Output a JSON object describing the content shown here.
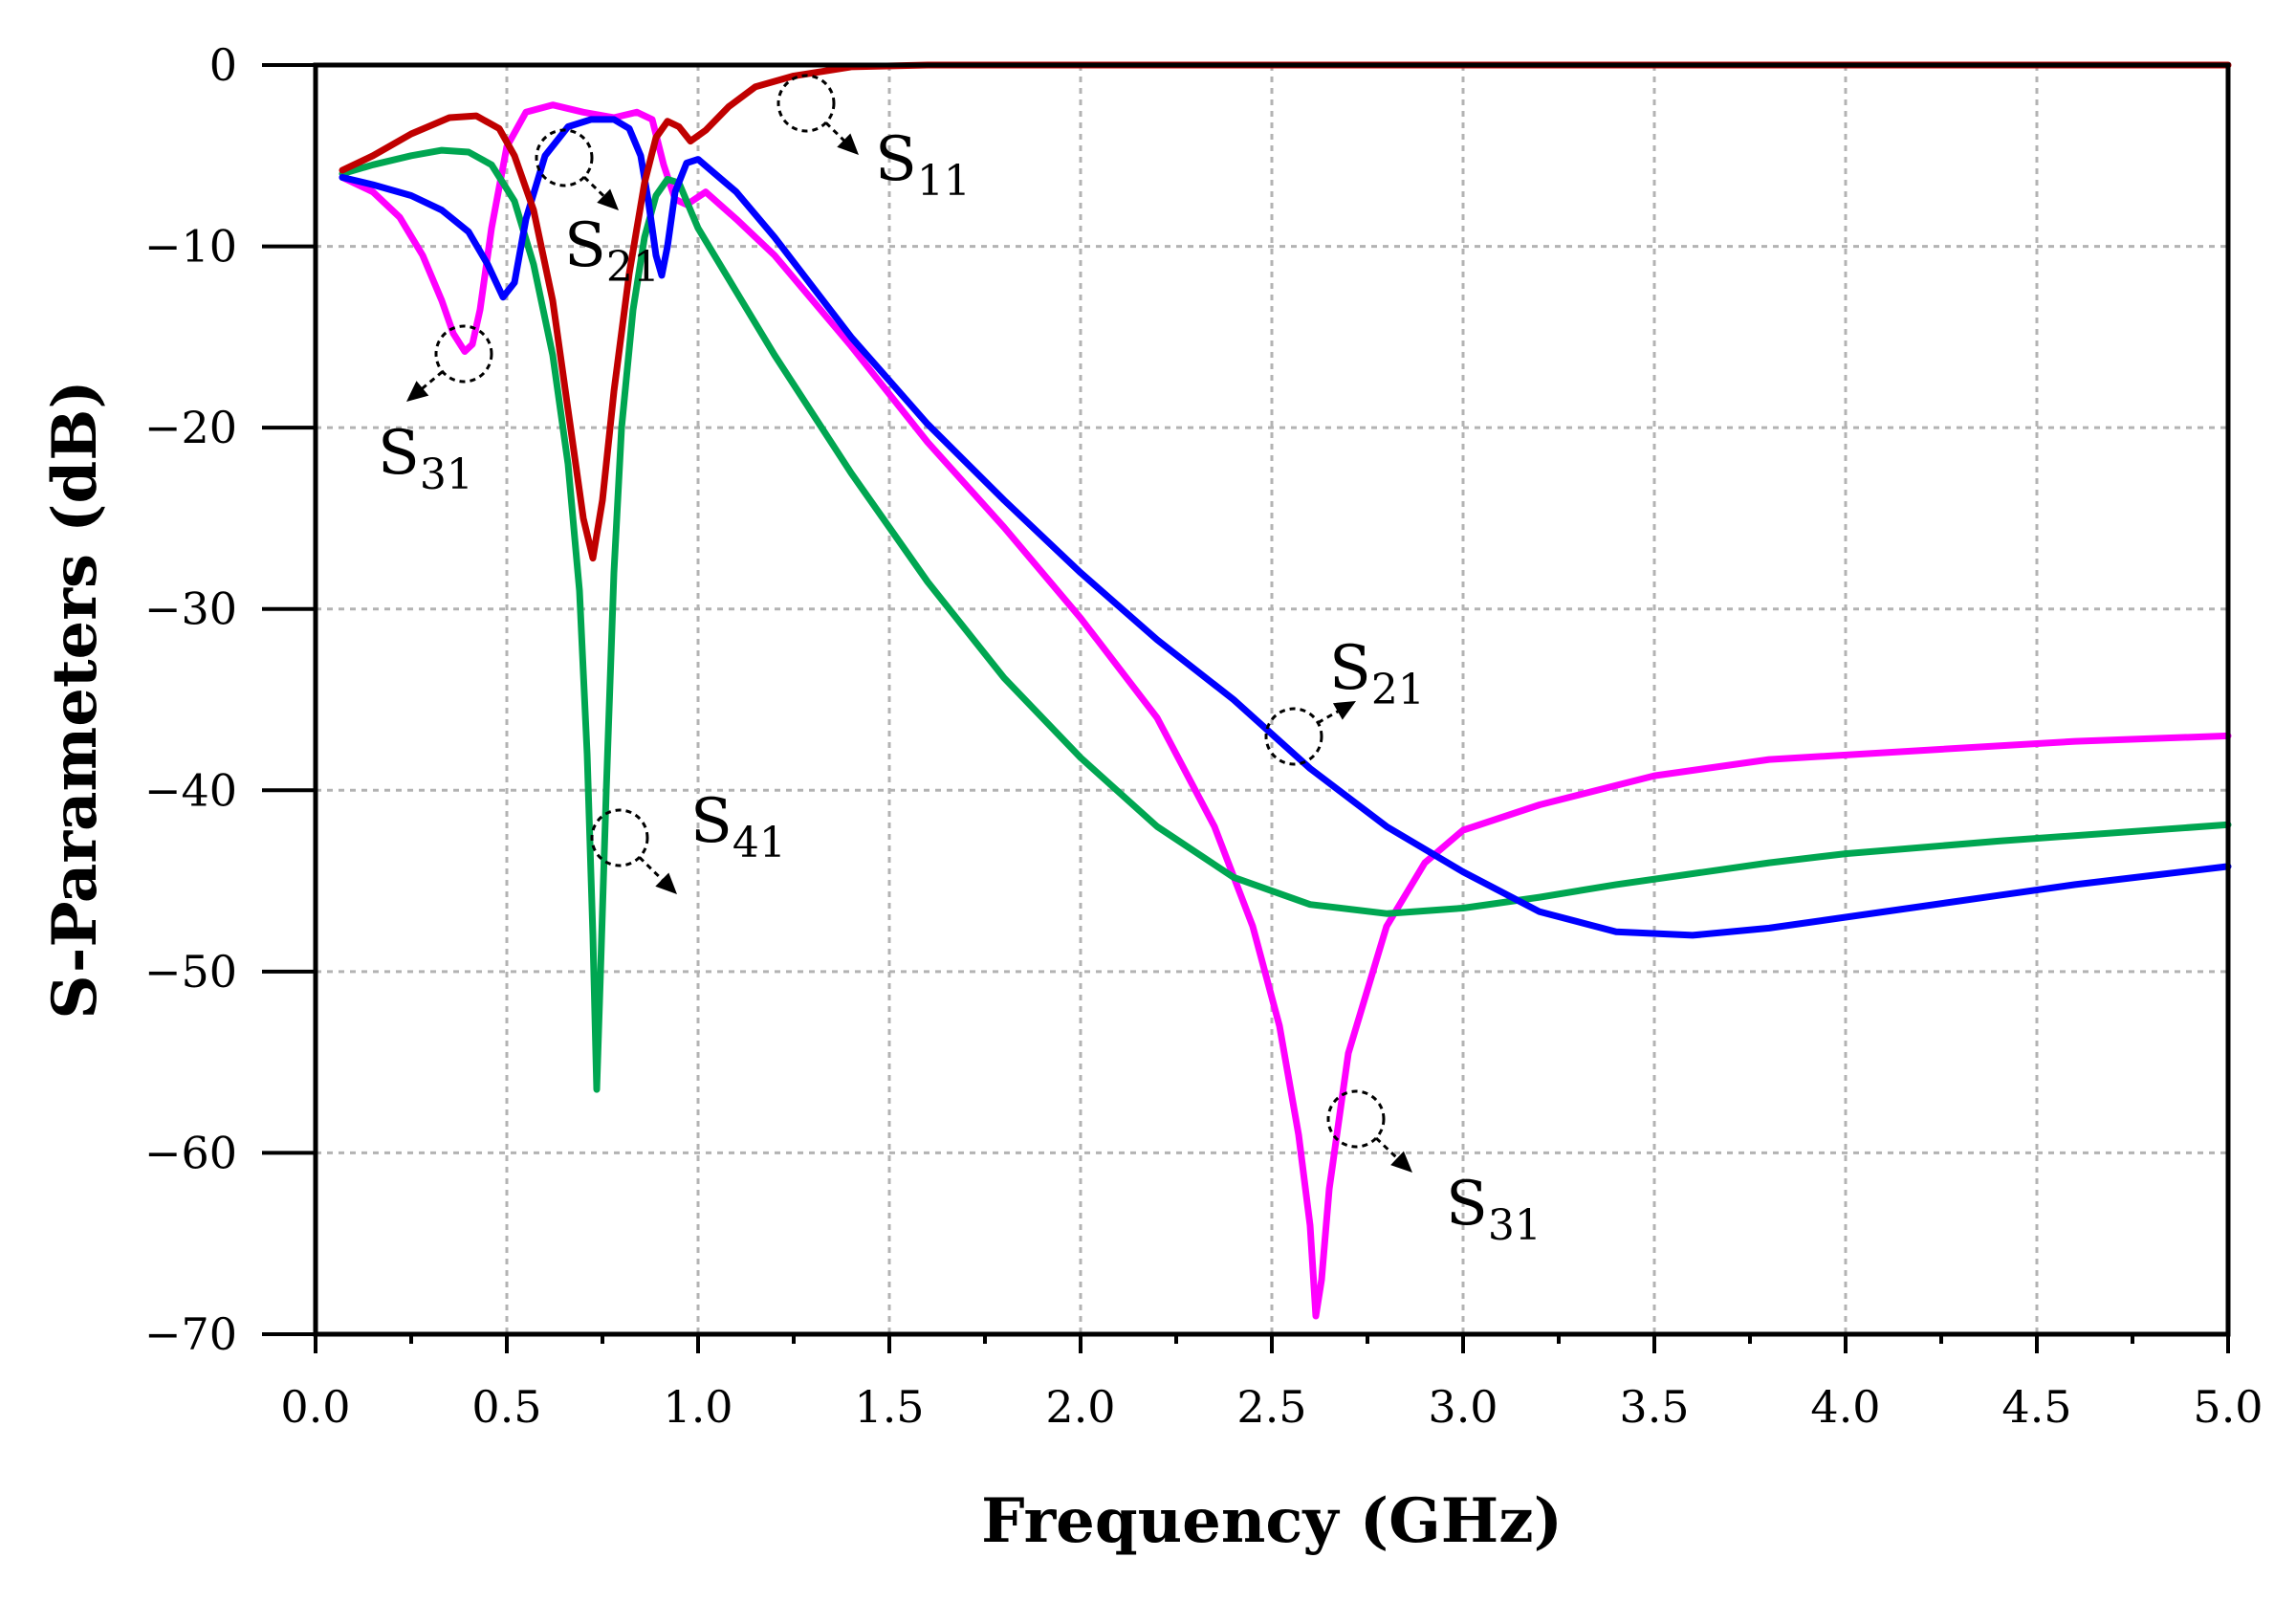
{
  "chart_data": {
    "type": "line",
    "title": "",
    "xlabel": "Frequency  (GHz)",
    "ylabel": "S-Parameters (dB)",
    "xlim": [
      0.0,
      5.0
    ],
    "ylim": [
      -70,
      0
    ],
    "grid": true,
    "x_ticks": [
      "0.0",
      "0.5",
      "1.0",
      "1.5",
      "2.0",
      "2.5",
      "3.0",
      "3.5",
      "4.0",
      "4.5",
      "5.0"
    ],
    "y_ticks": [
      "0",
      "−10",
      "−20",
      "−30",
      "−40",
      "−50",
      "−60",
      "−70"
    ],
    "series": [
      {
        "name": "S11",
        "color": "#c00000",
        "points": [
          [
            0.07,
            -5.8
          ],
          [
            0.15,
            -5.0
          ],
          [
            0.25,
            -3.8
          ],
          [
            0.35,
            -2.9
          ],
          [
            0.42,
            -2.8
          ],
          [
            0.48,
            -3.5
          ],
          [
            0.52,
            -5.0
          ],
          [
            0.57,
            -8.0
          ],
          [
            0.62,
            -13.0
          ],
          [
            0.66,
            -19.0
          ],
          [
            0.7,
            -25.0
          ],
          [
            0.725,
            -27.2
          ],
          [
            0.75,
            -24.0
          ],
          [
            0.78,
            -18.0
          ],
          [
            0.82,
            -11.5
          ],
          [
            0.86,
            -6.5
          ],
          [
            0.89,
            -4.0
          ],
          [
            0.92,
            -3.1
          ],
          [
            0.95,
            -3.4
          ],
          [
            0.98,
            -4.2
          ],
          [
            1.02,
            -3.6
          ],
          [
            1.08,
            -2.3
          ],
          [
            1.15,
            -1.2
          ],
          [
            1.25,
            -0.6
          ],
          [
            1.4,
            -0.1
          ],
          [
            1.6,
            0.0
          ],
          [
            2.0,
            0.0
          ],
          [
            3.0,
            0.0
          ],
          [
            4.0,
            0.0
          ],
          [
            5.0,
            0.0
          ]
        ]
      },
      {
        "name": "S21",
        "color": "#0000ff",
        "points": [
          [
            0.07,
            -6.2
          ],
          [
            0.15,
            -6.6
          ],
          [
            0.25,
            -7.2
          ],
          [
            0.33,
            -8.0
          ],
          [
            0.4,
            -9.2
          ],
          [
            0.45,
            -11.0
          ],
          [
            0.49,
            -12.8
          ],
          [
            0.52,
            -12.0
          ],
          [
            0.55,
            -8.5
          ],
          [
            0.6,
            -5.0
          ],
          [
            0.66,
            -3.4
          ],
          [
            0.72,
            -3.0
          ],
          [
            0.78,
            -3.0
          ],
          [
            0.82,
            -3.5
          ],
          [
            0.85,
            -5.0
          ],
          [
            0.87,
            -7.5
          ],
          [
            0.89,
            -10.5
          ],
          [
            0.905,
            -11.6
          ],
          [
            0.92,
            -10.0
          ],
          [
            0.94,
            -7.0
          ],
          [
            0.97,
            -5.4
          ],
          [
            1.0,
            -5.2
          ],
          [
            1.1,
            -7.0
          ],
          [
            1.2,
            -9.5
          ],
          [
            1.4,
            -15.0
          ],
          [
            1.6,
            -19.8
          ],
          [
            1.8,
            -24.0
          ],
          [
            2.0,
            -28.0
          ],
          [
            2.2,
            -31.7
          ],
          [
            2.4,
            -35.0
          ],
          [
            2.6,
            -38.8
          ],
          [
            2.8,
            -42.0
          ],
          [
            3.0,
            -44.5
          ],
          [
            3.2,
            -46.7
          ],
          [
            3.4,
            -47.8
          ],
          [
            3.6,
            -48.0
          ],
          [
            3.8,
            -47.6
          ],
          [
            4.0,
            -47.0
          ],
          [
            4.2,
            -46.4
          ],
          [
            4.4,
            -45.8
          ],
          [
            4.6,
            -45.2
          ],
          [
            4.8,
            -44.7
          ],
          [
            5.0,
            -44.2
          ]
        ]
      },
      {
        "name": "S31",
        "color": "#ff00ff",
        "points": [
          [
            0.07,
            -6.2
          ],
          [
            0.15,
            -7.0
          ],
          [
            0.22,
            -8.4
          ],
          [
            0.28,
            -10.5
          ],
          [
            0.33,
            -13.0
          ],
          [
            0.36,
            -14.8
          ],
          [
            0.39,
            -15.8
          ],
          [
            0.41,
            -15.4
          ],
          [
            0.43,
            -13.5
          ],
          [
            0.46,
            -9.0
          ],
          [
            0.5,
            -4.5
          ],
          [
            0.55,
            -2.6
          ],
          [
            0.62,
            -2.2
          ],
          [
            0.7,
            -2.6
          ],
          [
            0.78,
            -2.9
          ],
          [
            0.84,
            -2.6
          ],
          [
            0.88,
            -3.0
          ],
          [
            0.91,
            -5.5
          ],
          [
            0.94,
            -7.4
          ],
          [
            0.97,
            -7.7
          ],
          [
            1.02,
            -7.0
          ],
          [
            1.1,
            -8.5
          ],
          [
            1.2,
            -10.5
          ],
          [
            1.4,
            -15.5
          ],
          [
            1.6,
            -20.8
          ],
          [
            1.8,
            -25.5
          ],
          [
            2.0,
            -30.5
          ],
          [
            2.2,
            -36.0
          ],
          [
            2.35,
            -42.0
          ],
          [
            2.45,
            -47.5
          ],
          [
            2.52,
            -53.0
          ],
          [
            2.57,
            -59.0
          ],
          [
            2.6,
            -64.0
          ],
          [
            2.615,
            -69.0
          ],
          [
            2.63,
            -67.0
          ],
          [
            2.65,
            -62.0
          ],
          [
            2.7,
            -54.5
          ],
          [
            2.8,
            -47.5
          ],
          [
            2.9,
            -44.0
          ],
          [
            3.0,
            -42.2
          ],
          [
            3.2,
            -40.8
          ],
          [
            3.5,
            -39.2
          ],
          [
            3.8,
            -38.3
          ],
          [
            4.2,
            -37.8
          ],
          [
            4.6,
            -37.3
          ],
          [
            5.0,
            -37.0
          ]
        ]
      },
      {
        "name": "S41",
        "color": "#00a651",
        "points": [
          [
            0.07,
            -6.0
          ],
          [
            0.15,
            -5.5
          ],
          [
            0.25,
            -5.0
          ],
          [
            0.33,
            -4.7
          ],
          [
            0.4,
            -4.8
          ],
          [
            0.46,
            -5.5
          ],
          [
            0.52,
            -7.5
          ],
          [
            0.57,
            -11.0
          ],
          [
            0.62,
            -16.0
          ],
          [
            0.66,
            -22.0
          ],
          [
            0.69,
            -29.0
          ],
          [
            0.71,
            -38.0
          ],
          [
            0.725,
            -48.0
          ],
          [
            0.735,
            -56.5
          ],
          [
            0.745,
            -50.0
          ],
          [
            0.76,
            -40.0
          ],
          [
            0.78,
            -28.0
          ],
          [
            0.8,
            -20.0
          ],
          [
            0.83,
            -13.5
          ],
          [
            0.86,
            -9.5
          ],
          [
            0.89,
            -7.2
          ],
          [
            0.92,
            -6.3
          ],
          [
            0.95,
            -6.5
          ],
          [
            1.0,
            -9.0
          ],
          [
            1.1,
            -12.5
          ],
          [
            1.2,
            -16.0
          ],
          [
            1.4,
            -22.5
          ],
          [
            1.6,
            -28.5
          ],
          [
            1.8,
            -33.8
          ],
          [
            2.0,
            -38.2
          ],
          [
            2.2,
            -42.0
          ],
          [
            2.4,
            -44.8
          ],
          [
            2.6,
            -46.3
          ],
          [
            2.8,
            -46.8
          ],
          [
            3.0,
            -46.5
          ],
          [
            3.2,
            -45.9
          ],
          [
            3.4,
            -45.2
          ],
          [
            3.6,
            -44.6
          ],
          [
            3.8,
            -44.0
          ],
          [
            4.0,
            -43.5
          ],
          [
            4.4,
            -42.8
          ],
          [
            5.0,
            -41.9
          ]
        ]
      }
    ],
    "annotations": [
      {
        "label": "S",
        "sub": "11",
        "target": "S11"
      },
      {
        "label": "S",
        "sub": "21",
        "target": "S21 (low band)"
      },
      {
        "label": "S",
        "sub": "31",
        "target": "S31 (low band)"
      },
      {
        "label": "S",
        "sub": "41",
        "target": "S41"
      },
      {
        "label": "S",
        "sub": "21",
        "target": "S21 (high band)"
      },
      {
        "label": "S",
        "sub": "31",
        "target": "S31 (high band)"
      }
    ]
  }
}
